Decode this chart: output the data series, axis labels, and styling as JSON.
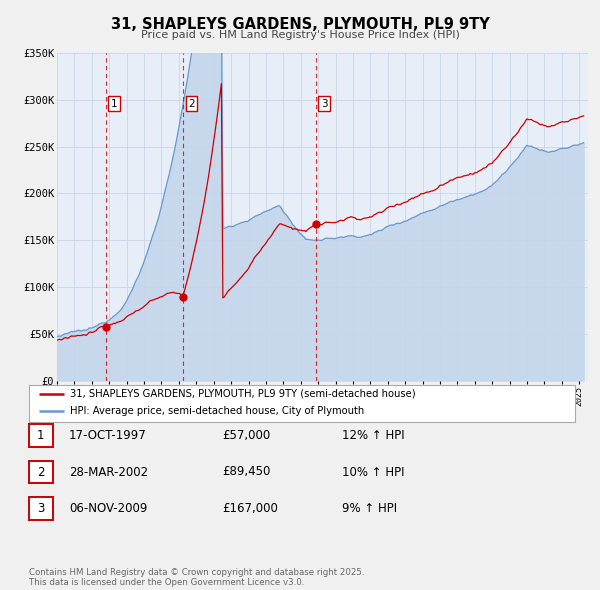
{
  "title": "31, SHAPLEYS GARDENS, PLYMOUTH, PL9 9TY",
  "subtitle": "Price paid vs. HM Land Registry's House Price Index (HPI)",
  "ylim": [
    0,
    350000
  ],
  "yticks": [
    0,
    50000,
    100000,
    150000,
    200000,
    250000,
    300000,
    350000
  ],
  "ytick_labels": [
    "£0",
    "£50K",
    "£100K",
    "£150K",
    "£200K",
    "£250K",
    "£300K",
    "£350K"
  ],
  "background_color": "#f0f0f0",
  "plot_bg_color": "#e8eef8",
  "grid_color": "#c8d4e8",
  "red_line_color": "#cc0000",
  "blue_line_color": "#6699cc",
  "blue_fill_color": "#c8d8ec",
  "vline_color": "#cc0000",
  "sale_date_nums": [
    1997.79,
    2002.24,
    2009.85
  ],
  "sale_prices": [
    57000,
    89450,
    167000
  ],
  "sale_labels": [
    "1",
    "2",
    "3"
  ],
  "legend_label_red": "31, SHAPLEYS GARDENS, PLYMOUTH, PL9 9TY (semi-detached house)",
  "legend_label_blue": "HPI: Average price, semi-detached house, City of Plymouth",
  "table_entries": [
    {
      "num": "1",
      "date": "17-OCT-1997",
      "price": "£57,000",
      "hpi": "12% ↑ HPI"
    },
    {
      "num": "2",
      "date": "28-MAR-2002",
      "price": "£89,450",
      "hpi": "10% ↑ HPI"
    },
    {
      "num": "3",
      "date": "06-NOV-2009",
      "price": "£167,000",
      "hpi": "9% ↑ HPI"
    }
  ],
  "footer": "Contains HM Land Registry data © Crown copyright and database right 2025.\nThis data is licensed under the Open Government Licence v3.0."
}
